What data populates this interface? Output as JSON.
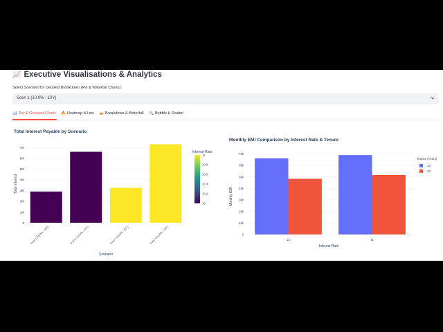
{
  "page": {
    "title": "Executive Visualisations & Analytics",
    "title_icon": "chart-increasing-icon",
    "select_label": "Select Scenario for Detailed Breakdown (Pie & Waterfall Charts):",
    "select_value": "Scen 1 (10.0% - 10Y)"
  },
  "tabs": [
    {
      "label": "Bar & Grouped Charts",
      "icon": "bar-chart-icon",
      "active": true
    },
    {
      "label": "Heatmap & Line",
      "icon": "fire-icon",
      "active": false
    },
    {
      "label": "Breakdown & Waterfall",
      "icon": "pie-icon",
      "active": false
    },
    {
      "label": "Bubble & Scatter",
      "icon": "magnifier-icon",
      "active": false
    }
  ],
  "chart_data": [
    {
      "type": "bar",
      "title": "Total Interest Payable by Scenario",
      "xlabel": "Scenario",
      "ylabel": "Total Interest",
      "categories": [
        "Scen 1 (10.0% - 10Y)",
        "Scen 2 (10.0% - 20Y)",
        "Scen 3 (11.0% - 10Y)",
        "Scen 4 (11.0% - 20Y)"
      ],
      "values": [
        2.9,
        6.6,
        3.25,
        7.3
      ],
      "ylim": [
        0,
        7.4
      ],
      "yticks": [
        0,
        1,
        2,
        3,
        4,
        5,
        6,
        7
      ],
      "ytick_labels": [
        "0",
        "1M",
        "2M",
        "3M",
        "4M",
        "5M",
        "6M",
        "7M"
      ],
      "color_by": [
        10,
        10,
        11,
        11
      ],
      "colorscale": {
        "title": "Interest Rate",
        "min": 10,
        "max": 11,
        "ticks": [
          "10",
          "10.2",
          "10.4",
          "10.6",
          "10.8",
          "11"
        ],
        "low_color": "#440154",
        "high_color": "#fde725"
      },
      "grid": true
    },
    {
      "type": "bar",
      "title": "Monthly EMI Comparison by Interest Rate & Tenure",
      "xlabel": "Interest Rate",
      "ylabel": "Monthly EMI",
      "categories": [
        "10",
        "11"
      ],
      "series": [
        {
          "name": "10",
          "color": "#636efa",
          "values": [
            66000,
            68900
          ]
        },
        {
          "name": "20",
          "color": "#ef553b",
          "values": [
            48300,
            51600
          ]
        }
      ],
      "ylim": [
        0,
        72000
      ],
      "yticks": [
        0,
        10000,
        20000,
        30000,
        40000,
        50000,
        60000,
        70000
      ],
      "ytick_labels": [
        "0",
        "10k",
        "20k",
        "30k",
        "40k",
        "50k",
        "60k",
        "70k"
      ],
      "legend_title": "Tenure (Years)",
      "legend_position": "right",
      "grid": true
    }
  ]
}
